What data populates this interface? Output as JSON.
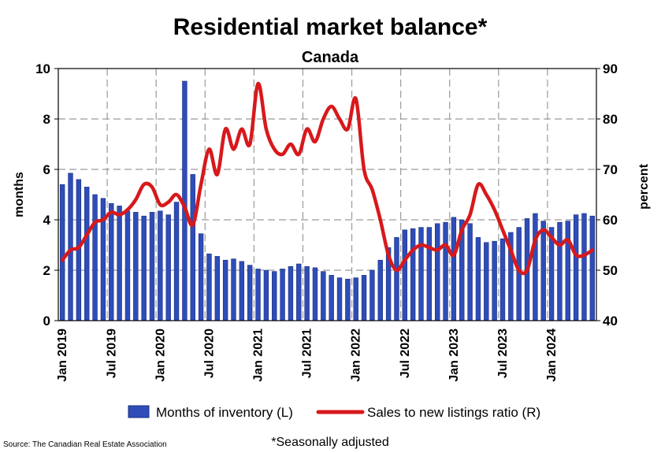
{
  "chart_data": {
    "type": "bar",
    "title": "Residential market balance*",
    "subtitle": "Canada",
    "ylabel_left": "months",
    "ylabel_right": "percent",
    "ylim_left": [
      0,
      10
    ],
    "ylim_right": [
      40,
      90
    ],
    "yticks_left": [
      "0",
      "2",
      "4",
      "6",
      "8",
      "10"
    ],
    "yticks_right": [
      "40",
      "50",
      "60",
      "70",
      "80",
      "90"
    ],
    "xtick_labels": [
      "Jan 2019",
      "Jul 2019",
      "Jan 2020",
      "Jul 2020",
      "Jan 2021",
      "Jul 2021",
      "Jan 2022",
      "Jul 2022",
      "Jan 2023",
      "Jul 2023",
      "Jan 2024"
    ],
    "grid": true,
    "legend_position": "bottom",
    "colors": {
      "bars": "#2E4DB8",
      "bar_edge": "#1A2F80",
      "line": "#D7191C",
      "grid": "#9A9A9A"
    },
    "categories": [
      "2019-01",
      "2019-02",
      "2019-03",
      "2019-04",
      "2019-05",
      "2019-06",
      "2019-07",
      "2019-08",
      "2019-09",
      "2019-10",
      "2019-11",
      "2019-12",
      "2020-01",
      "2020-02",
      "2020-03",
      "2020-04",
      "2020-05",
      "2020-06",
      "2020-07",
      "2020-08",
      "2020-09",
      "2020-10",
      "2020-11",
      "2020-12",
      "2021-01",
      "2021-02",
      "2021-03",
      "2021-04",
      "2021-05",
      "2021-06",
      "2021-07",
      "2021-08",
      "2021-09",
      "2021-10",
      "2021-11",
      "2021-12",
      "2022-01",
      "2022-02",
      "2022-03",
      "2022-04",
      "2022-05",
      "2022-06",
      "2022-07",
      "2022-08",
      "2022-09",
      "2022-10",
      "2022-11",
      "2022-12",
      "2023-01",
      "2023-02",
      "2023-03",
      "2023-04",
      "2023-05",
      "2023-06",
      "2023-07",
      "2023-08",
      "2023-09",
      "2023-10",
      "2023-11",
      "2023-12",
      "2024-01",
      "2024-02",
      "2024-03",
      "2024-04",
      "2024-05",
      "2024-06"
    ],
    "series": [
      {
        "name": "Months of inventory (L)",
        "type": "bar",
        "axis": "left",
        "values": [
          5.4,
          5.85,
          5.6,
          5.3,
          5.0,
          4.85,
          4.65,
          4.55,
          4.35,
          4.3,
          4.15,
          4.3,
          4.35,
          4.2,
          4.7,
          9.5,
          5.8,
          3.45,
          2.65,
          2.55,
          2.4,
          2.45,
          2.35,
          2.2,
          2.05,
          2.0,
          1.95,
          2.05,
          2.15,
          2.25,
          2.15,
          2.1,
          1.95,
          1.8,
          1.7,
          1.65,
          1.7,
          1.8,
          2.0,
          2.4,
          2.9,
          3.3,
          3.6,
          3.65,
          3.7,
          3.7,
          3.85,
          3.9,
          4.1,
          4.0,
          3.85,
          3.3,
          3.1,
          3.15,
          3.25,
          3.5,
          3.7,
          4.05,
          4.25,
          3.95,
          3.7,
          3.9,
          3.95,
          4.2,
          4.25,
          4.15
        ]
      },
      {
        "name": "Sales to new listings ratio (R)",
        "type": "line",
        "axis": "right",
        "values": [
          52,
          54,
          54.5,
          57,
          59.5,
          60,
          61.5,
          61,
          62,
          64,
          67,
          66.5,
          63,
          63.5,
          65,
          62.5,
          59,
          67,
          74,
          69,
          78,
          74,
          78,
          75,
          87,
          78,
          74,
          73,
          75,
          73,
          78,
          75.5,
          80,
          82.5,
          80,
          78,
          84,
          70,
          66,
          60,
          53,
          50,
          52,
          54,
          55,
          54.5,
          54,
          55,
          53,
          58,
          61,
          67,
          65,
          62,
          58,
          54,
          50,
          50,
          56,
          58,
          56.5,
          55,
          56,
          53,
          53,
          54
        ]
      }
    ],
    "legend": [
      "Months of inventory (L)",
      "Sales to new listings ratio (R)"
    ],
    "source_note": "Source: The Canadian Real Estate Association",
    "footnote": "*Seasonally adjusted"
  }
}
